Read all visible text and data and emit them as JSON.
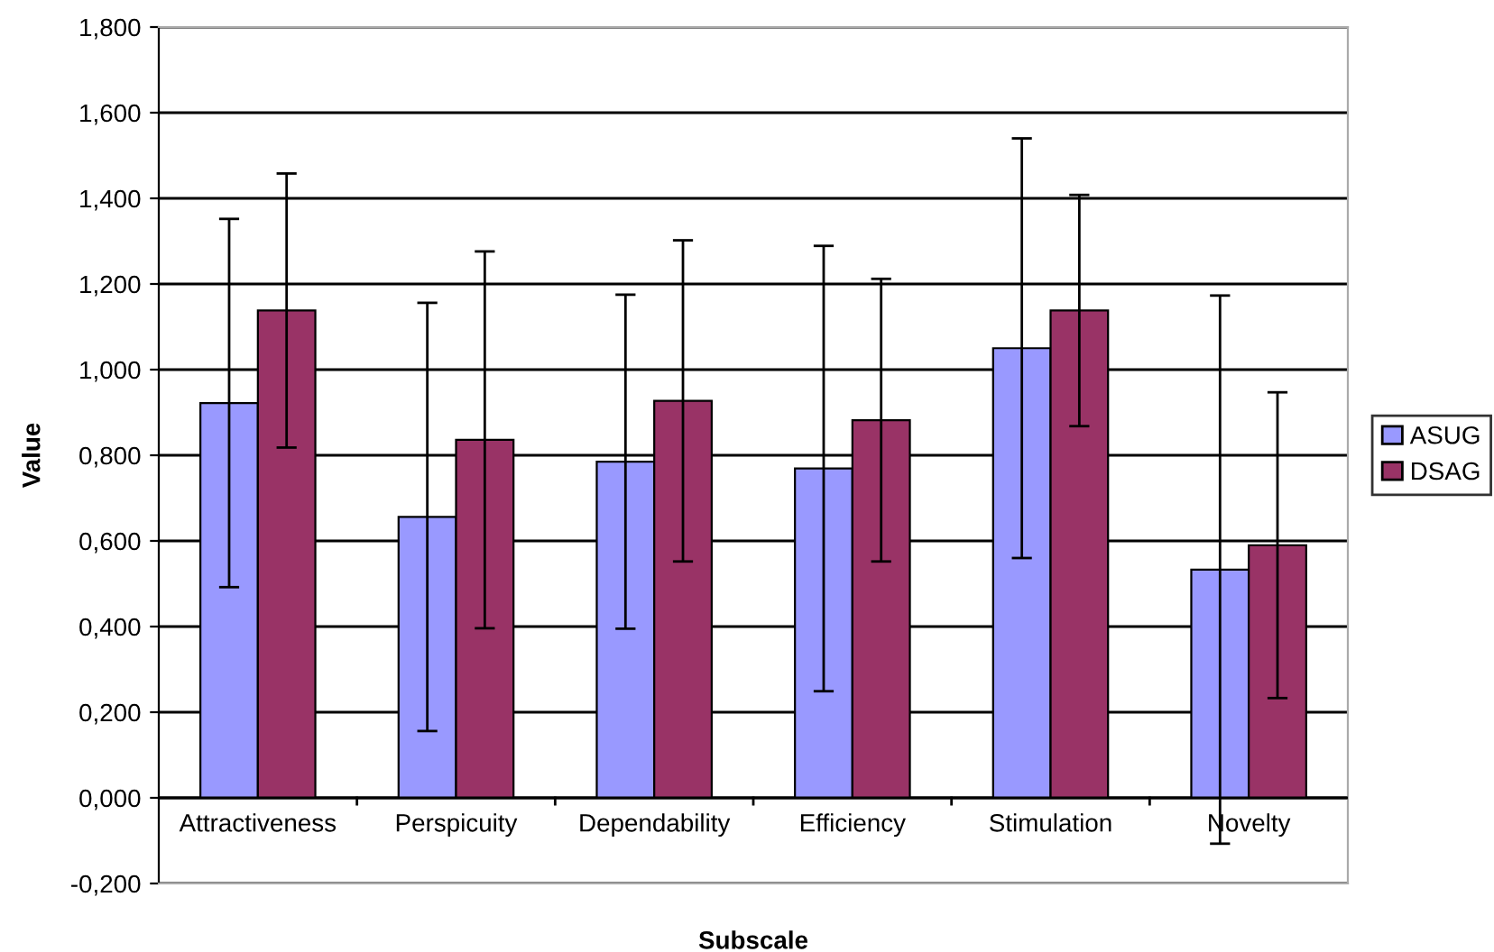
{
  "chart_data": {
    "type": "bar",
    "xlabel": "Subscale",
    "ylabel": "Value",
    "categories": [
      "Attractiveness",
      "Perspicuity",
      "Dependability",
      "Efficiency",
      "Stimulation",
      "Novelty"
    ],
    "series": [
      {
        "name": "ASUG",
        "color": "#9999ff",
        "values": [
          0.922,
          0.656,
          0.785,
          0.769,
          1.05,
          0.533
        ],
        "errors": [
          0.43,
          0.5,
          0.39,
          0.52,
          0.49,
          0.64
        ]
      },
      {
        "name": "DSAG",
        "color": "#993366",
        "values": [
          1.138,
          0.836,
          0.927,
          0.882,
          1.138,
          0.59
        ],
        "errors": [
          0.32,
          0.44,
          0.375,
          0.33,
          0.27,
          0.357
        ]
      }
    ],
    "ylim": [
      -0.2,
      1.8
    ],
    "yticks": [
      {
        "value": -0.2,
        "label": "-0,200"
      },
      {
        "value": 0,
        "label": "0,000"
      },
      {
        "value": 0.2,
        "label": "0,200"
      },
      {
        "value": 0.4,
        "label": "0,400"
      },
      {
        "value": 0.6,
        "label": "0,600"
      },
      {
        "value": 0.8,
        "label": "0,800"
      },
      {
        "value": 1.0,
        "label": "1,000"
      },
      {
        "value": 1.2,
        "label": "1,200"
      },
      {
        "value": 1.4,
        "label": "1,400"
      },
      {
        "value": 1.6,
        "label": "1,600"
      },
      {
        "value": 1.8,
        "label": "1,800"
      }
    ],
    "grid": "y",
    "legend": "right"
  }
}
